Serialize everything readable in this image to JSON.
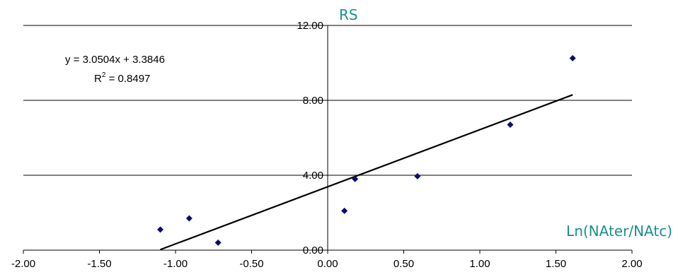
{
  "chart_data": {
    "type": "scatter",
    "xlabel": "Ln(NAter/NAtc)",
    "ylabel": "RS",
    "xlim": [
      -2.0,
      2.0
    ],
    "ylim": [
      0.0,
      12.0
    ],
    "x_ticks": [
      -2.0,
      -1.5,
      -1.0,
      -0.5,
      0.0,
      0.5,
      1.0,
      1.5,
      2.0
    ],
    "y_ticks": [
      0.0,
      4.0,
      8.0,
      12.0
    ],
    "x_tick_labels": [
      "-2.00",
      "-1.50",
      "-1.00",
      "-0.50",
      "0.00",
      "0.50",
      "1.00",
      "1.50",
      "2.00"
    ],
    "y_tick_labels": [
      "0.00",
      "4.00",
      "8.00",
      "12.00"
    ],
    "grid": "horizontal",
    "series": [
      {
        "x": [
          -1.1,
          -0.91,
          -0.72,
          0.11,
          0.18,
          0.59,
          1.2,
          1.61
        ],
        "y": [
          1.1,
          1.7,
          0.4,
          2.1,
          3.8,
          3.95,
          6.7,
          10.25
        ]
      }
    ],
    "trendline": {
      "slope": 3.0504,
      "intercept": 3.3846,
      "x_range": [
        -1.1,
        1.61
      ],
      "equation": "y = 3.0504x + 3.3846",
      "r2_prefix": "R",
      "r2_superscript": "2",
      "r2_value": " = 0.8497"
    },
    "colors": {
      "points": "#0b0b6e",
      "trendline": "#000000",
      "axis_title": "#1a9090"
    }
  }
}
